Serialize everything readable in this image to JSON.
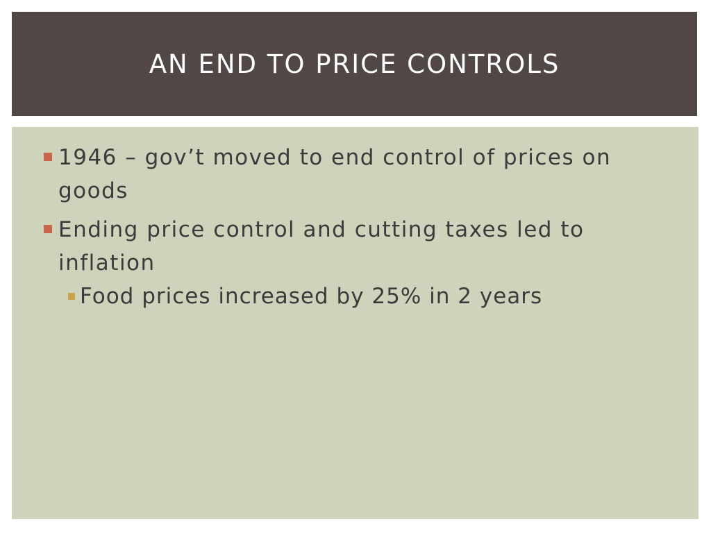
{
  "header": {
    "title": "AN END TO PRICE CONTROLS"
  },
  "bullets": [
    {
      "text": "1946 – gov’t moved to end control of prices on goods"
    },
    {
      "text": "Ending price control and cutting taxes led to inflation",
      "sub": [
        {
          "text": "Food prices increased by 25% in 2 years"
        }
      ]
    }
  ]
}
